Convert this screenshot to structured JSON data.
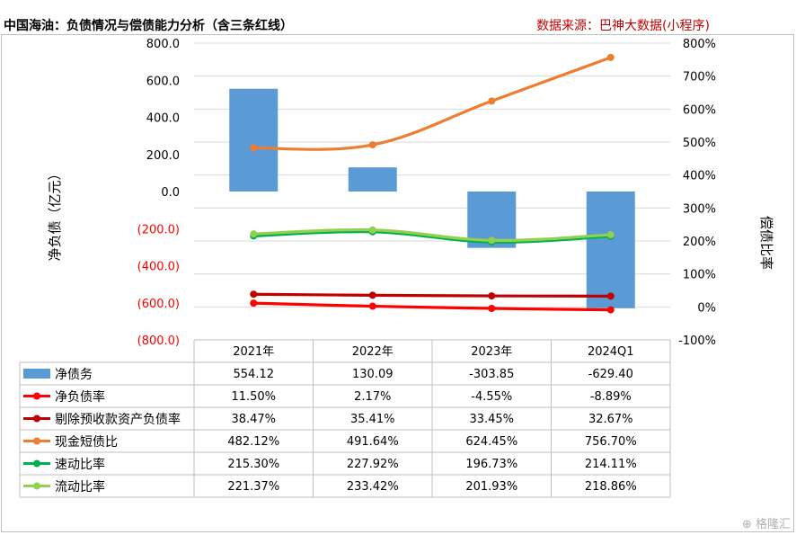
{
  "header": {
    "title": "中国海油：负债情况与偿债能力分析（含三条红线）",
    "source": "数据来源：巴神大数据(小程序)"
  },
  "watermark": {
    "text": "格隆汇"
  },
  "chart_data": {
    "type": "bar+line",
    "categories": [
      "2021年",
      "2022年",
      "2023年",
      "2024Q1"
    ],
    "ylabel_left": "净负债（亿元）",
    "ylabel_right": "偿债比率",
    "ylim_left": [
      -800,
      800
    ],
    "ylim_right": [
      -100,
      800
    ],
    "yticks_left": [
      "800.0",
      "600.0",
      "400.0",
      "200.0",
      "0.0",
      "(200.0)",
      "(400.0)",
      "(600.0)",
      "(800.0)"
    ],
    "yticks_right": [
      "800%",
      "700%",
      "600%",
      "500%",
      "400%",
      "300%",
      "200%",
      "100%",
      "0%",
      "-100%"
    ],
    "grid": true,
    "legend": "data-table",
    "series": [
      {
        "name": "净债务",
        "kind": "bar",
        "axis": "left",
        "color": "#5b9bd5",
        "values": [
          554.12,
          130.09,
          -303.85,
          -629.4
        ],
        "labels": [
          "554.12",
          "130.09",
          "-303.85",
          "-629.40"
        ]
      },
      {
        "name": "净负债率",
        "kind": "line",
        "axis": "right",
        "color": "#ff0000",
        "values": [
          11.5,
          2.17,
          -4.55,
          -8.89
        ],
        "labels": [
          "11.50%",
          "2.17%",
          "-4.55%",
          "-8.89%"
        ]
      },
      {
        "name": "剔除预收款资产负债率",
        "kind": "line",
        "axis": "right",
        "color": "#c00000",
        "values": [
          38.47,
          35.41,
          33.45,
          32.67
        ],
        "labels": [
          "38.47%",
          "35.41%",
          "33.45%",
          "32.67%"
        ]
      },
      {
        "name": "现金短债比",
        "kind": "line",
        "axis": "right",
        "color": "#ed7d31",
        "values": [
          482.12,
          491.64,
          624.45,
          756.7
        ],
        "labels": [
          "482.12%",
          "491.64%",
          "624.45%",
          "756.70%"
        ]
      },
      {
        "name": "速动比率",
        "kind": "line",
        "axis": "right",
        "color": "#00b050",
        "values": [
          215.3,
          227.92,
          196.73,
          214.11
        ],
        "labels": [
          "215.30%",
          "227.92%",
          "196.73%",
          "214.11%"
        ]
      },
      {
        "name": "流动比率",
        "kind": "line",
        "axis": "right",
        "color": "#92d050",
        "values": [
          221.37,
          233.42,
          201.93,
          218.86
        ],
        "labels": [
          "221.37%",
          "233.42%",
          "201.93%",
          "218.86%"
        ]
      }
    ]
  }
}
